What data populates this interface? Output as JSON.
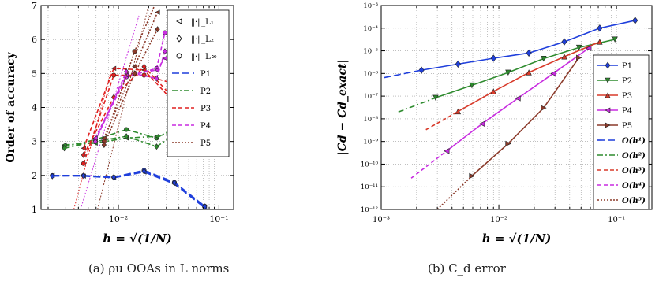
{
  "captions": {
    "a": "(a) ρu OOAs in L norms",
    "b": "(b) C_d error"
  },
  "chart_data": [
    {
      "type": "line",
      "xscale": "log",
      "xlim": [
        0.0017,
        0.14
      ],
      "ylim": [
        1,
        7
      ],
      "xlabel": "h = √(1/N)",
      "ylabel": "Order of accuracy",
      "x_ticks": [
        {
          "value": 0.01,
          "label": "10⁻²"
        },
        {
          "value": 0.1,
          "label": "10⁻¹"
        }
      ],
      "y_ticks": [
        1,
        2,
        3,
        4,
        5,
        6,
        7
      ],
      "grid": true,
      "legend": {
        "placement": "top-right",
        "marker_entries": [
          {
            "marker": "triangle-left",
            "label": "‖·‖_L₁"
          },
          {
            "marker": "diamond",
            "label": "‖·‖_L₂"
          },
          {
            "marker": "circle",
            "label": "‖·‖_L∞"
          }
        ]
      },
      "series": [
        {
          "name": "P1",
          "color": "#1f3fdc",
          "dash": "long-dash",
          "lines": [
            {
              "marker": "circle",
              "x": [
                0.0022,
                0.0045,
                0.009,
                0.018,
                0.036,
                0.072
              ],
              "y": [
                2.0,
                2.0,
                1.95,
                2.15,
                1.8,
                1.1
              ]
            },
            {
              "marker": "triangle-left",
              "x": [
                0.0022,
                0.0045,
                0.009,
                0.018,
                0.036,
                0.072
              ],
              "y": [
                2.0,
                1.98,
                1.93,
                2.1,
                1.75,
                1.05
              ]
            },
            {
              "marker": "diamond",
              "x": [
                0.0022,
                0.0045,
                0.009,
                0.018,
                0.036,
                0.072
              ],
              "y": [
                1.98,
                1.99,
                1.95,
                2.12,
                1.78,
                1.08
              ]
            }
          ]
        },
        {
          "name": "P2",
          "color": "#2e8b2e",
          "dash": "dash-dot",
          "lines": [
            {
              "marker": "circle",
              "x": [
                0.0029,
                0.0059,
                0.012,
                0.024,
                0.048
              ],
              "y": [
                2.85,
                3.05,
                3.35,
                3.1,
                3.6
              ]
            },
            {
              "marker": "triangle-left",
              "x": [
                0.0029,
                0.0059,
                0.012,
                0.024,
                0.048
              ],
              "y": [
                2.9,
                2.95,
                3.1,
                3.15,
                3.35
              ]
            },
            {
              "marker": "diamond",
              "x": [
                0.0029,
                0.0059,
                0.012,
                0.024,
                0.048
              ],
              "y": [
                2.8,
                3.0,
                3.15,
                2.85,
                3.45
              ]
            }
          ]
        },
        {
          "name": "P3",
          "color": "#e02020",
          "dash": "dash",
          "lines": [
            {
              "marker": "circle",
              "x": [
                0.0045,
                0.009,
                0.018,
                0.036
              ],
              "y": [
                2.35,
                4.95,
                4.95,
                4.7
              ]
            },
            {
              "marker": "triangle-left",
              "x": [
                0.0045,
                0.009,
                0.018,
                0.036
              ],
              "y": [
                2.8,
                5.15,
                5.1,
                4.15
              ]
            },
            {
              "marker": "diamond",
              "x": [
                0.0045,
                0.009,
                0.018,
                0.036
              ],
              "y": [
                2.6,
                4.3,
                5.2,
                4.25
              ]
            }
          ]
        },
        {
          "name": "P4",
          "color": "#c82ce0",
          "dash": "dash",
          "lines": [
            {
              "marker": "circle",
              "x": [
                0.0059,
                0.012,
                0.024,
                0.029
              ],
              "y": [
                3.05,
                4.9,
                5.15,
                6.2
              ]
            },
            {
              "marker": "triangle-left",
              "x": [
                0.0059,
                0.012,
                0.024,
                0.029
              ],
              "y": [
                3.1,
                4.95,
                5.1,
                5.45
              ]
            },
            {
              "marker": "diamond",
              "x": [
                0.0059,
                0.012,
                0.024,
                0.029
              ],
              "y": [
                3.0,
                5.05,
                4.85,
                5.65
              ]
            }
          ]
        },
        {
          "name": "P5",
          "color": "#8b3a2a",
          "dash": "dot",
          "lines": [
            {
              "marker": "circle",
              "x": [
                0.0072,
                0.0145,
                0.0245
              ],
              "y": [
                3.0,
                5.65,
                7.2
              ]
            },
            {
              "marker": "triangle-left",
              "x": [
                0.0072,
                0.0145,
                0.0245
              ],
              "y": [
                3.1,
                5.2,
                6.8
              ]
            },
            {
              "marker": "diamond",
              "x": [
                0.0072,
                0.0145,
                0.0245
              ],
              "y": [
                2.9,
                5.0,
                6.3
              ]
            }
          ]
        }
      ],
      "guide_lines": [
        {
          "color": "#e02020",
          "from": [
            0.0036,
            1.0
          ],
          "to": [
            0.0085,
            5.1
          ]
        },
        {
          "color": "#c82ce0",
          "from": [
            0.0042,
            1.0
          ],
          "to": [
            0.016,
            6.7
          ]
        },
        {
          "color": "#8b3a2a",
          "from": [
            0.0062,
            1.0
          ],
          "to": [
            0.02,
            7.0
          ]
        }
      ]
    },
    {
      "type": "line",
      "xscale": "log",
      "yscale": "log",
      "xlim": [
        0.001,
        0.2
      ],
      "ylim": [
        1e-12,
        0.001
      ],
      "xlabel": "h = √(1/N)",
      "ylabel": "|Cd − Cd_exact|",
      "x_ticks": [
        {
          "value": 0.001,
          "label": "10⁻³"
        },
        {
          "value": 0.01,
          "label": "10⁻²"
        },
        {
          "value": 0.1,
          "label": "10⁻¹"
        }
      ],
      "y_ticks": [
        {
          "value": 1e-12,
          "label": "10⁻¹²"
        },
        {
          "value": 1e-11,
          "label": "10⁻¹¹"
        },
        {
          "value": 1e-10,
          "label": "10⁻¹⁰"
        },
        {
          "value": 1e-09,
          "label": "10⁻⁹"
        },
        {
          "value": 1e-08,
          "label": "10⁻⁸"
        },
        {
          "value": 1e-07,
          "label": "10⁻⁷"
        },
        {
          "value": 1e-06,
          "label": "10⁻⁶"
        },
        {
          "value": 1e-05,
          "label": "10⁻⁵"
        },
        {
          "value": 0.0001,
          "label": "10⁻⁴"
        },
        {
          "value": 0.001,
          "label": "10⁻³"
        }
      ],
      "grid": true,
      "legend": {
        "placement": "right"
      },
      "series": [
        {
          "name": "P1",
          "color": "#1f3fdc",
          "marker": "diamond",
          "x": [
            0.0022,
            0.0045,
            0.009,
            0.018,
            0.036,
            0.072,
            0.144
          ],
          "y": [
            1.4e-06,
            2.6e-06,
            4.7e-06,
            8e-06,
            2.5e-05,
            0.0001,
            0.00022
          ]
        },
        {
          "name": "P2",
          "color": "#2e8b2e",
          "marker": "triangle-down",
          "x": [
            0.0029,
            0.0059,
            0.012,
            0.024,
            0.048,
            0.097
          ],
          "y": [
            8.5e-08,
            3e-07,
            1.1e-06,
            4.5e-06,
            1.4e-05,
            3.2e-05
          ]
        },
        {
          "name": "P3",
          "color": "#d83a2a",
          "marker": "triangle-up",
          "x": [
            0.0045,
            0.009,
            0.018,
            0.036,
            0.072
          ],
          "y": [
            2.1e-08,
            1.6e-07,
            1.1e-06,
            5.5e-06,
            2.5e-05
          ]
        },
        {
          "name": "P4",
          "color": "#c82ce0",
          "marker": "triangle-left",
          "x": [
            0.0036,
            0.0072,
            0.0145,
            0.029,
            0.058
          ],
          "y": [
            3.8e-10,
            6e-09,
            8e-08,
            1e-06,
            1.3e-05
          ]
        },
        {
          "name": "P5",
          "color": "#8b3a2a",
          "marker": "triangle-right",
          "x": [
            0.0059,
            0.012,
            0.024,
            0.048
          ],
          "y": [
            3e-11,
            8e-10,
            3e-08,
            5e-06
          ]
        },
        {
          "name": "O(h¹)",
          "color": "#1f3fdc",
          "dash": "long-dash",
          "x": [
            0.00105,
            0.0022
          ],
          "y": [
            6.5e-07,
            1.4e-06
          ]
        },
        {
          "name": "O(h²)",
          "color": "#2e8b2e",
          "dash": "dash-dot",
          "x": [
            0.0014,
            0.0029
          ],
          "y": [
            2e-08,
            8.5e-08
          ]
        },
        {
          "name": "O(h³)",
          "color": "#d83a2a",
          "dash": "dash",
          "x": [
            0.0024,
            0.0045
          ],
          "y": [
            3.3e-09,
            2.1e-08
          ]
        },
        {
          "name": "O(h⁴)",
          "color": "#c82ce0",
          "dash": "dash",
          "x": [
            0.0018,
            0.0036
          ],
          "y": [
            2.4e-11,
            3.8e-10
          ]
        },
        {
          "name": "O(h⁵)",
          "color": "#8b3a2a",
          "dash": "dot",
          "x": [
            0.003,
            0.0059
          ],
          "y": [
            1e-12,
            3e-11
          ]
        }
      ]
    }
  ]
}
